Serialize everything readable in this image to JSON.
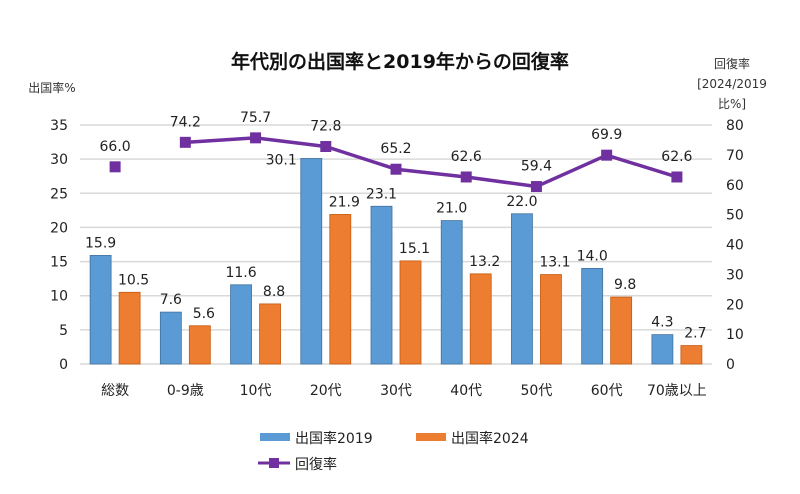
{
  "chart_data": {
    "type": "bar",
    "title": "年代別の出国率と2019年からの回復率",
    "ylabel_left": "出国率%",
    "ylabel_right_lines": [
      "回復率",
      "[2024/2019",
      "比%]"
    ],
    "xlabel": "",
    "categories": [
      "総数",
      "0-9歳",
      "10代",
      "20代",
      "30代",
      "40代",
      "50代",
      "60代",
      "70歳以上"
    ],
    "ylim_left": [
      0,
      35
    ],
    "yticks_left": [
      0,
      5,
      10,
      15,
      20,
      25,
      30,
      35
    ],
    "ylim_right": [
      0,
      80
    ],
    "yticks_right": [
      0,
      10,
      20,
      30,
      40,
      50,
      60,
      70,
      80
    ],
    "grid": true,
    "legend_position": "bottom",
    "series": [
      {
        "name": "出国率2019",
        "type": "bar",
        "axis": "left",
        "color": "#5b9bd5",
        "values": [
          15.9,
          7.6,
          11.6,
          30.1,
          23.1,
          21.0,
          22.0,
          14.0,
          4.3
        ],
        "labels": [
          "15.9",
          "7.6",
          "11.6",
          "30.1",
          "23.1",
          "21.0",
          "22.0",
          "14.0",
          "4.3"
        ]
      },
      {
        "name": "出国率2024",
        "type": "bar",
        "axis": "left",
        "color": "#ed7d31",
        "values": [
          10.5,
          5.6,
          8.8,
          21.9,
          15.1,
          13.2,
          13.1,
          9.8,
          2.7
        ],
        "labels": [
          "10.5",
          "5.6",
          "8.8",
          "21.9",
          "15.1",
          "13.2",
          "13.1",
          "9.8",
          "2.7"
        ]
      },
      {
        "name": "回復率",
        "type": "line",
        "axis": "right",
        "color": "#7030a0",
        "marker": "square",
        "connect_from_index": 1,
        "values": [
          66.0,
          74.2,
          75.7,
          72.8,
          65.2,
          62.6,
          59.4,
          69.9,
          62.6
        ],
        "labels": [
          "66.0",
          "74.2",
          "75.7",
          "72.8",
          "65.2",
          "62.6",
          "59.4",
          "69.9",
          "62.6"
        ]
      }
    ]
  }
}
